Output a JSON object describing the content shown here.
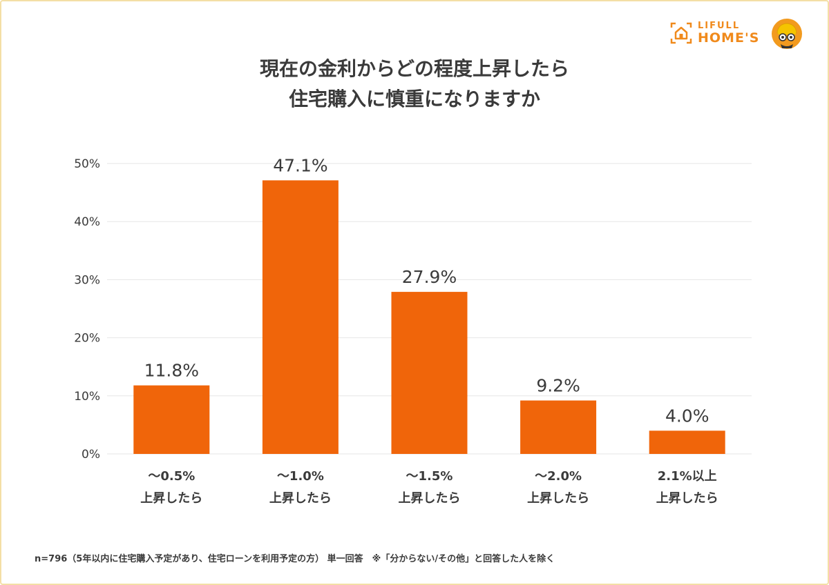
{
  "title_lines": [
    "現在の金利からどの程度上昇したら",
    "住宅購入に慎重になりますか"
  ],
  "logo": {
    "line1": "LIFULL",
    "line2": "HOME'S"
  },
  "footnote": "n=796（5年以内に住宅購入予定があり、住宅ローンを利用予定の方） 単一回答　※「分からない/その他」と回答した人を除く",
  "colors": {
    "bar": "#f0650a",
    "grid": "#e6e6e6",
    "text": "#3a3a3a",
    "brand": "#f08a1c"
  },
  "chart_data": {
    "type": "bar",
    "categories": [
      [
        "〜0.5%",
        "上昇したら"
      ],
      [
        "〜1.0%",
        "上昇したら"
      ],
      [
        "〜1.5%",
        "上昇したら"
      ],
      [
        "〜2.0%",
        "上昇したら"
      ],
      [
        "2.1%以上",
        "上昇したら"
      ]
    ],
    "values": [
      11.8,
      47.1,
      27.9,
      9.2,
      4.0
    ],
    "value_labels": [
      "11.8%",
      "47.1%",
      "27.9%",
      "9.2%",
      "4.0%"
    ],
    "yticks": [
      0,
      10,
      20,
      30,
      40,
      50
    ],
    "ytick_labels": [
      "0%",
      "10%",
      "20%",
      "30%",
      "40%",
      "50%"
    ],
    "ylim": [
      0,
      50
    ],
    "grid": true,
    "legend": false
  }
}
